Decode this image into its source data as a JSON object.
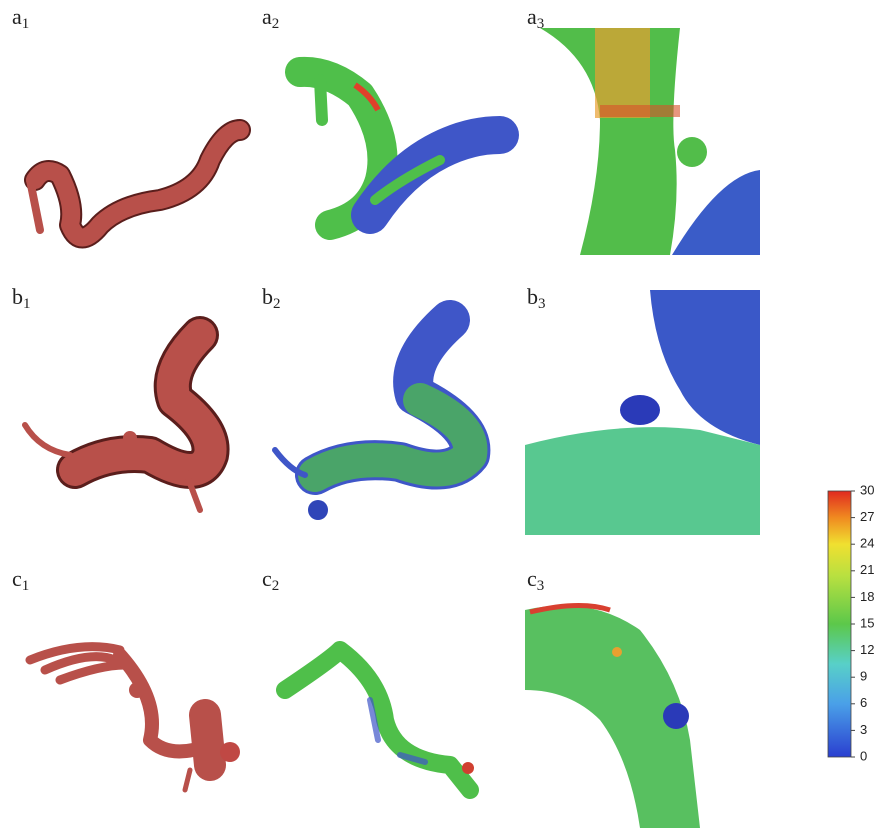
{
  "panels": [
    {
      "letter": "a",
      "sub": "1"
    },
    {
      "letter": "a",
      "sub": "2"
    },
    {
      "letter": "a",
      "sub": "3"
    },
    {
      "letter": "b",
      "sub": "1"
    },
    {
      "letter": "b",
      "sub": "2"
    },
    {
      "letter": "b",
      "sub": "3"
    },
    {
      "letter": "c",
      "sub": "1"
    },
    {
      "letter": "c",
      "sub": "2"
    },
    {
      "letter": "c",
      "sub": "3"
    }
  ],
  "colorbar": {
    "lim": [
      0,
      30
    ],
    "ticks": [
      0,
      3,
      6,
      9,
      12,
      15,
      18,
      21,
      24,
      27,
      30
    ]
  }
}
